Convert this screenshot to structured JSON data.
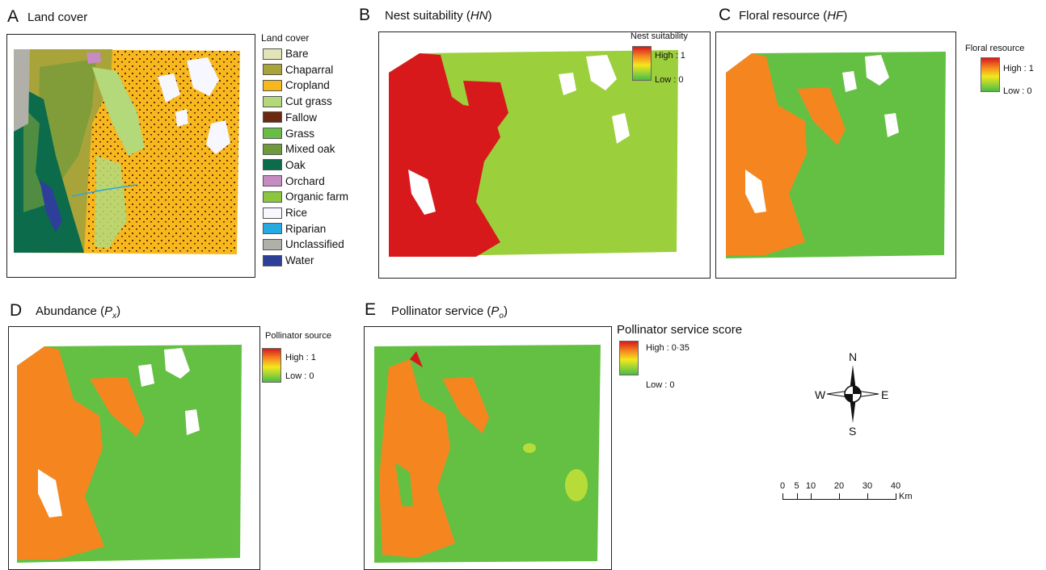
{
  "panels": {
    "A": {
      "letter": "A",
      "title": "Land cover"
    },
    "B": {
      "letter": "B",
      "title_pre": "Nest suitability (",
      "title_var": "HN",
      "title_post": ")"
    },
    "C": {
      "letter": "C",
      "title_pre": "Floral resource (",
      "title_var": "HF",
      "title_post": ")"
    },
    "D": {
      "letter": "D",
      "title_pre": "Abundance (",
      "title_var": "P",
      "title_sub": "x",
      "title_post": ")"
    },
    "E": {
      "letter": "E",
      "title_pre": "Pollinator service (",
      "title_var": "P",
      "title_sub": "o",
      "title_post": ")"
    }
  },
  "land_cover_legend": {
    "title": "Land cover",
    "items": [
      {
        "label": "Bare",
        "color": "#e3e3b8"
      },
      {
        "label": "Chaparral",
        "color": "#a8a43a"
      },
      {
        "label": "Cropland",
        "color": "#f6b81d"
      },
      {
        "label": "Cut grass",
        "color": "#b3d97a"
      },
      {
        "label": "Fallow",
        "color": "#6b2a10"
      },
      {
        "label": "Grass",
        "color": "#69bd45"
      },
      {
        "label": "Mixed oak",
        "color": "#6f9a3b"
      },
      {
        "label": "Oak",
        "color": "#0b6b4a"
      },
      {
        "label": "Orchard",
        "color": "#c78bc4"
      },
      {
        "label": "Organic farm",
        "color": "#8cc63f"
      },
      {
        "label": "Rice",
        "color": "#f7f7ff"
      },
      {
        "label": "Riparian",
        "color": "#27a9e1"
      },
      {
        "label": "Unclassified",
        "color": "#b0b0a8"
      },
      {
        "label": "Water",
        "color": "#2e3f9a"
      }
    ]
  },
  "gradient_legends": {
    "B": {
      "title": "Nest suitability",
      "high": "High : 1",
      "low": "Low : 0"
    },
    "C": {
      "title": "Floral resource",
      "high": "High : 1",
      "low": "Low : 0"
    },
    "D": {
      "title": "Pollinator source",
      "high": "High : 1",
      "low": "Low : 0"
    },
    "E": {
      "title": "Pollinator service score",
      "high": "High : 0·35",
      "low": "Low : 0"
    }
  },
  "compass": {
    "n": "N",
    "s": "S",
    "e": "E",
    "w": "W"
  },
  "scale_bar": {
    "ticks": [
      "0",
      "5",
      "10",
      "20",
      "30",
      "40"
    ],
    "unit": "Km"
  },
  "colors": {
    "high": "#d7191c",
    "orange": "#f5861f",
    "yellow": "#f4e71c",
    "green_mid": "#8ccf3a",
    "low_green": "#4cb944",
    "nest_low": "#9bcf3c"
  }
}
